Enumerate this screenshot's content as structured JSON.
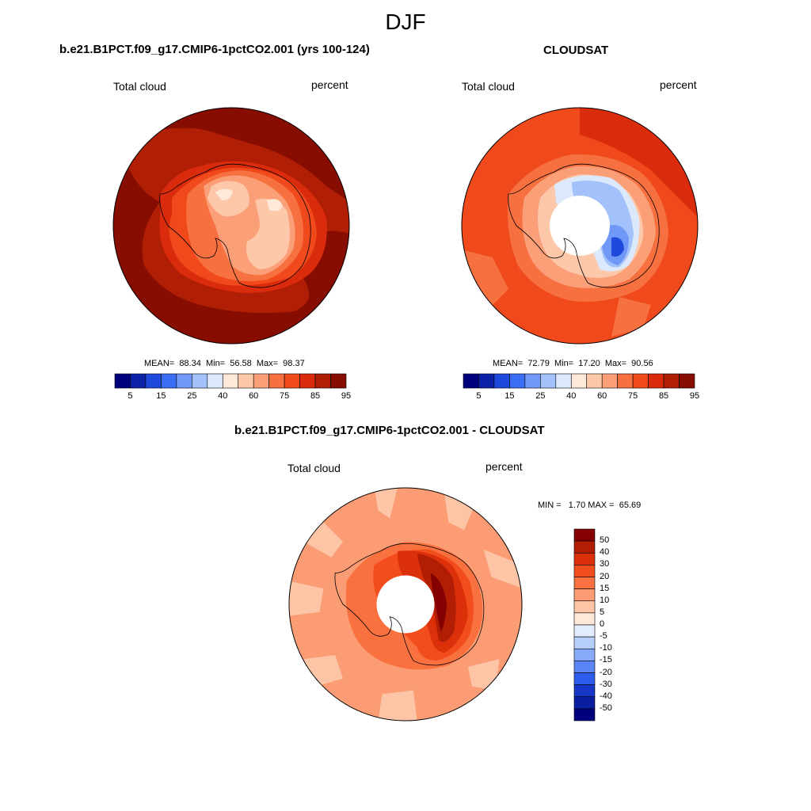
{
  "figure": {
    "title": "DJF"
  },
  "panels": [
    {
      "id": "model",
      "title": "b.e21.B1PCT.f09_g17.CMIP6-1pctCO2.001 (yrs 100-124)",
      "left_label": "Total cloud",
      "right_label": "percent",
      "stats": "MEAN=  88.34  Min=  56.58  Max=  98.37",
      "colorbar": {
        "colors": [
          "#00007f",
          "#0a21a8",
          "#1f48dc",
          "#3a6cf4",
          "#6f98f7",
          "#a3c1fa",
          "#dce9fc",
          "#fee8d7",
          "#fdc8a9",
          "#fb9f78",
          "#f7703f",
          "#f04a1c",
          "#da2c0c",
          "#b01f05",
          "#860d00"
        ],
        "tick_labels": [
          "5",
          "15",
          "25",
          "40",
          "60",
          "75",
          "85",
          "95"
        ]
      }
    },
    {
      "id": "obs",
      "title": "CLOUDSAT",
      "left_label": "Total cloud",
      "right_label": "percent",
      "stats": "MEAN=  72.79  Min=  17.20  Max=  90.56",
      "colorbar": {
        "colors": [
          "#00007f",
          "#0a21a8",
          "#1f48dc",
          "#3a6cf4",
          "#6f98f7",
          "#a3c1fa",
          "#dce9fc",
          "#fee8d7",
          "#fdc8a9",
          "#fb9f78",
          "#f7703f",
          "#f04a1c",
          "#da2c0c",
          "#b01f05",
          "#860d00"
        ],
        "tick_labels": [
          "5",
          "15",
          "25",
          "40",
          "60",
          "75",
          "85",
          "95"
        ]
      }
    },
    {
      "id": "diff",
      "title": "b.e21.B1PCT.f09_g17.CMIP6-1pctCO2.001 - CLOUDSAT",
      "left_label": "Total cloud",
      "right_label": "percent",
      "stats": "MIN =   1.70 MAX =  65.69",
      "colorbar": {
        "colors": [
          "#850000",
          "#b21e04",
          "#dc300b",
          "#f24d1d",
          "#f9713f",
          "#fb9c74",
          "#fdc5a6",
          "#fee8d8",
          "#e3edfd",
          "#b6d0fb",
          "#86aaf8",
          "#5b84f5",
          "#2e5cec",
          "#1638c8",
          "#0a1ea2",
          "#00007d"
        ],
        "tick_labels": [
          "50",
          "40",
          "30",
          "20",
          "15",
          "10",
          "5",
          "0",
          "-5",
          "-10",
          "-15",
          "-20",
          "-30",
          "-40",
          "-50"
        ]
      }
    }
  ]
}
